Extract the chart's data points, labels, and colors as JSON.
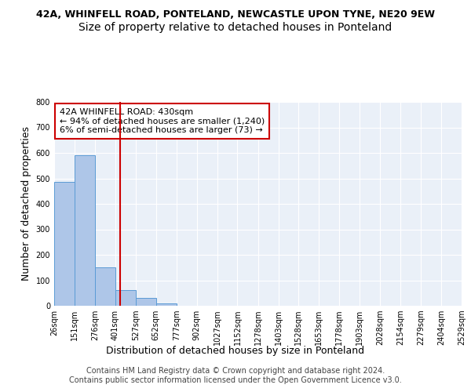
{
  "title1": "42A, WHINFELL ROAD, PONTELAND, NEWCASTLE UPON TYNE, NE20 9EW",
  "title2": "Size of property relative to detached houses in Ponteland",
  "xlabel": "Distribution of detached houses by size in Ponteland",
  "ylabel": "Number of detached properties",
  "bin_edges": [
    26,
    151,
    276,
    401,
    527,
    652,
    777,
    902,
    1027,
    1152,
    1278,
    1403,
    1528,
    1653,
    1778,
    1903,
    2028,
    2154,
    2279,
    2404,
    2529
  ],
  "bin_labels": [
    "26sqm",
    "151sqm",
    "276sqm",
    "401sqm",
    "527sqm",
    "652sqm",
    "777sqm",
    "902sqm",
    "1027sqm",
    "1152sqm",
    "1278sqm",
    "1403sqm",
    "1528sqm",
    "1653sqm",
    "1778sqm",
    "1903sqm",
    "2028sqm",
    "2154sqm",
    "2279sqm",
    "2404sqm",
    "2529sqm"
  ],
  "counts": [
    487,
    591,
    150,
    63,
    30,
    10,
    0,
    0,
    0,
    0,
    0,
    0,
    0,
    0,
    0,
    0,
    0,
    0,
    0,
    0
  ],
  "bar_color": "#aec6e8",
  "bar_edgecolor": "#5b9bd5",
  "property_value": 430,
  "vline_color": "#cc0000",
  "annotation_line1": "42A WHINFELL ROAD: 430sqm",
  "annotation_line2": "← 94% of detached houses are smaller (1,240)",
  "annotation_line3": "6% of semi-detached houses are larger (73) →",
  "annotation_box_edgecolor": "#cc0000",
  "annotation_box_facecolor": "#ffffff",
  "ylim": [
    0,
    800
  ],
  "yticks": [
    0,
    100,
    200,
    300,
    400,
    500,
    600,
    700,
    800
  ],
  "footer1": "Contains HM Land Registry data © Crown copyright and database right 2024.",
  "footer2": "Contains public sector information licensed under the Open Government Licence v3.0.",
  "bg_color": "#eaf0f8",
  "fig_bg_color": "#ffffff",
  "title1_fontsize": 9,
  "title2_fontsize": 10,
  "xlabel_fontsize": 9,
  "ylabel_fontsize": 9,
  "tick_fontsize": 7,
  "footer_fontsize": 7,
  "annotation_fontsize": 8
}
